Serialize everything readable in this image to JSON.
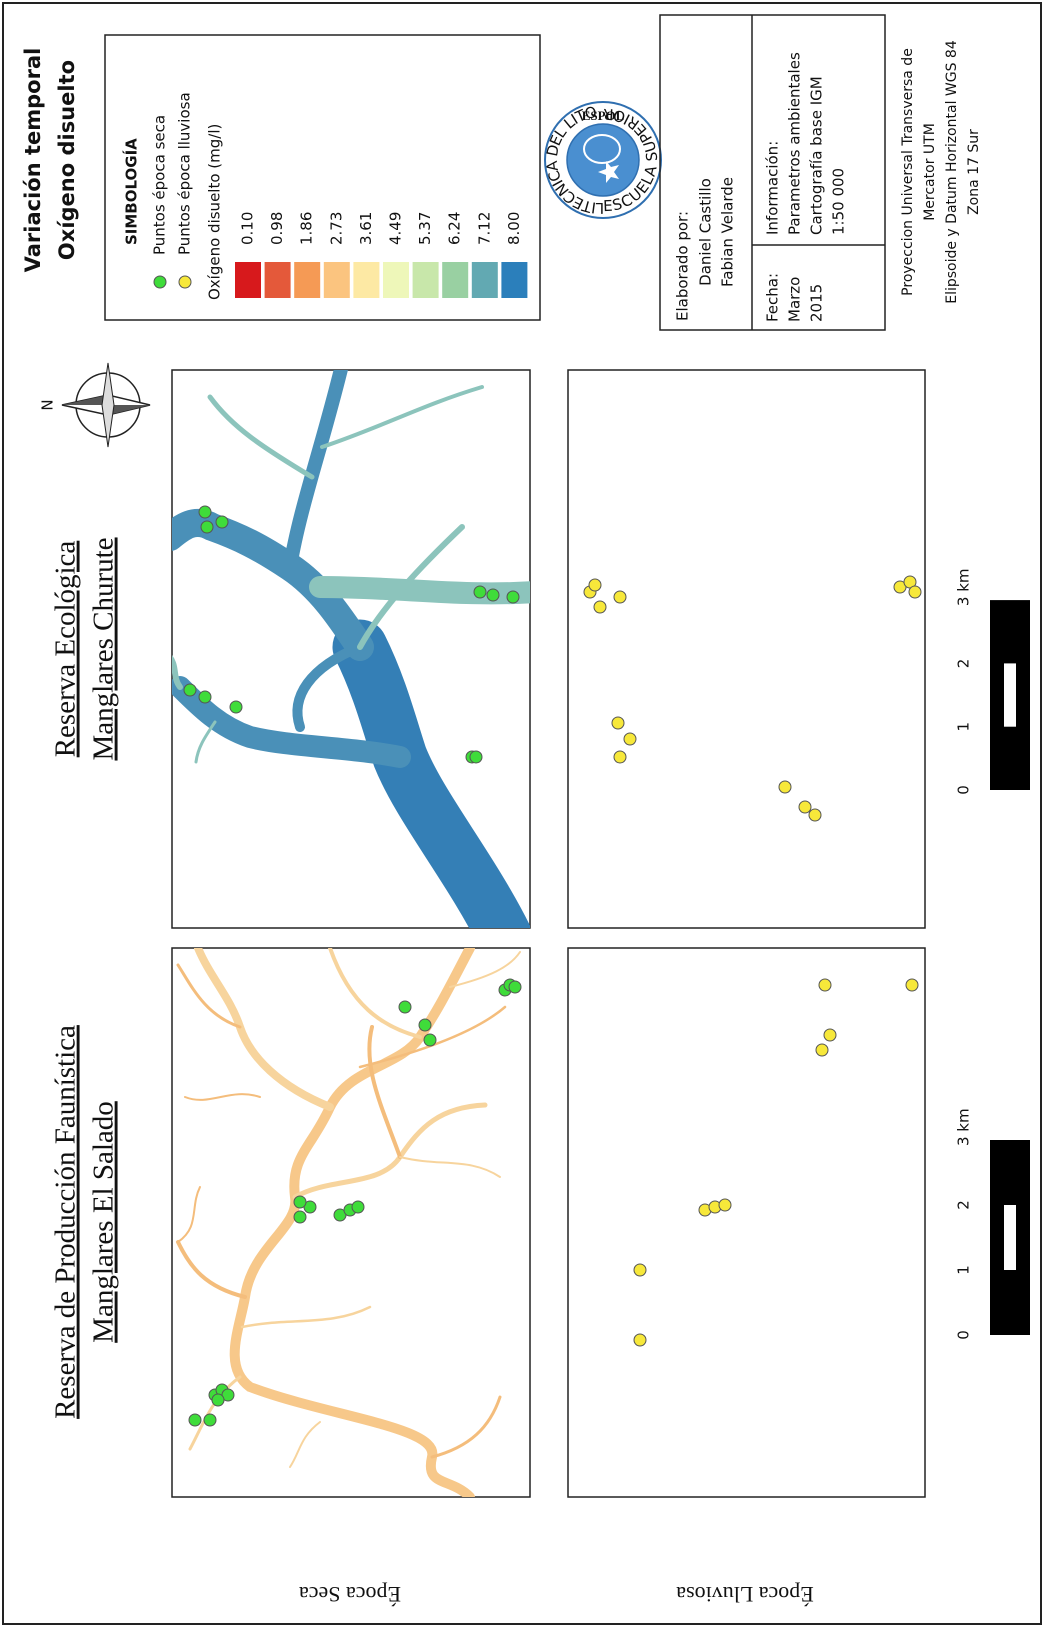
{
  "title": [
    "Variación temporal",
    "Oxígeno disuelto"
  ],
  "rows": [
    "Época Seca",
    "Época Lluviosa"
  ],
  "maps": [
    {
      "heading": [
        "Reserva de Producción Faunística",
        "Manglares El Salado"
      ],
      "scale": [
        "0",
        "1",
        "2",
        "3 km"
      ]
    },
    {
      "heading": [
        "Reserva Ecológica",
        "Manglares Churute"
      ],
      "scale": [
        "0",
        "1",
        "2",
        "3 km"
      ]
    }
  ],
  "north": "N",
  "legend": {
    "title": "SIMBOLOGÍA",
    "points": [
      "Puntos época seca",
      "Puntos época lluviosa"
    ],
    "point_colors": [
      "#3fdc3a",
      "#f7e83a"
    ],
    "ramp_title": "Oxígeno disuelto (mg/l)",
    "ramp": [
      "0.10",
      "0.98",
      "1.86",
      "2.73",
      "3.61",
      "4.49",
      "5.37",
      "6.24",
      "7.12",
      "8.00"
    ],
    "ramp_colors": [
      "#d7191c",
      "#e4593a",
      "#f59a55",
      "#fbc47f",
      "#fde9a4",
      "#eef7b9",
      "#c8e7aa",
      "#99d0a2",
      "#62a9b2",
      "#2b7fbb"
    ]
  },
  "logo": {
    "ring_top": "POLITECNICA DEL LITORAL",
    "ring_bottom": "ESCUELA SUPERIOR",
    "name": "ESPOL"
  },
  "info": {
    "author_label": "Elaborado por:",
    "authors": [
      "Daniel Castillo",
      "Fabian Velarde"
    ],
    "date_label": "Fecha:",
    "date": [
      "Marzo",
      "2015"
    ],
    "info_label": "Información:",
    "info": [
      "Parametros ambientales",
      "Cartografía base IGM",
      "1:50 000"
    ],
    "projection": [
      "Proyeccion Universal Transversa de",
      "Mercator UTM",
      "Elipsoide y Datum Horizontal WGS 84",
      "Zona 17 Sur"
    ]
  }
}
